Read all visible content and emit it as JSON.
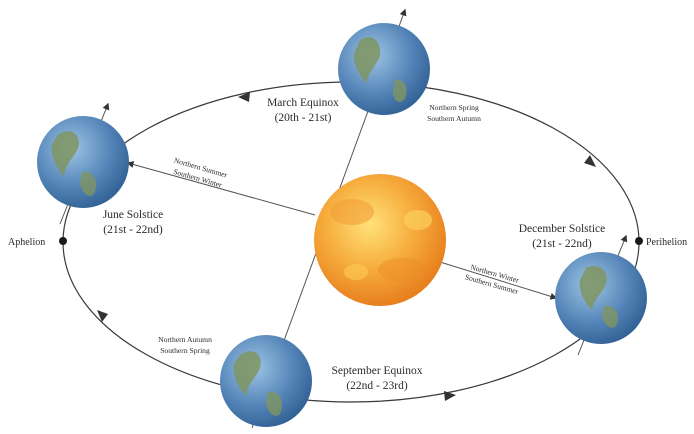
{
  "colors": {
    "orbit": "#3a3a3a",
    "ocean_light": "#9cc4e4",
    "ocean_dark": "#2f5f93",
    "land": "#7f9560",
    "sun_light": "#ffe27a",
    "sun_dark": "#e8801e"
  },
  "points": {
    "aphelion": "Aphelion",
    "perihelion": "Perihelion"
  },
  "positions": {
    "march": {
      "title": "March Equinox",
      "dates": "(20th - 21st)",
      "hemi_north": "Northern Spring",
      "hemi_south": "Southern Autumn"
    },
    "june": {
      "title": "June Solstice",
      "dates": "(21st - 22nd)",
      "hemi_north": "Northern Summer",
      "hemi_south": "Southern Winter"
    },
    "september": {
      "title": "September Equinox",
      "dates": "(22nd - 23rd)",
      "hemi_north": "Northern Autumn",
      "hemi_south": "Southern Spring"
    },
    "december": {
      "title": "December Solstice",
      "dates": "(21st - 22nd)",
      "hemi_north": "Northern Winter",
      "hemi_south": "Southern Summer"
    }
  }
}
